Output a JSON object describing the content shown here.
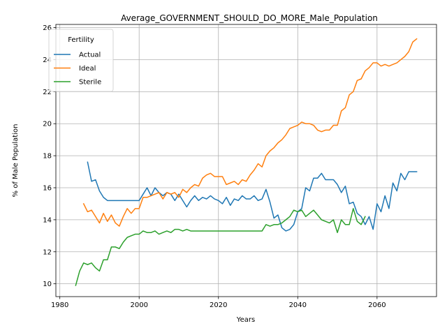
{
  "chart_data": {
    "type": "line",
    "title": "Average_GOVERNMENT_SHOULD_DO_MORE_Male_Population",
    "xlabel": "Years",
    "ylabel": "% of Male Population",
    "xlim": [
      1979,
      2075
    ],
    "ylim": [
      9.2,
      26.2
    ],
    "xticks": [
      1980,
      2000,
      2020,
      2040,
      2060
    ],
    "yticks": [
      10,
      12,
      14,
      16,
      18,
      20,
      22,
      24,
      26
    ],
    "grid": true,
    "legend": {
      "title": "Fertility",
      "placement": "top-left",
      "entries": [
        "Actual",
        "Ideal",
        "Sterile"
      ]
    },
    "series": [
      {
        "name": "Actual",
        "color": "#1f77b4",
        "x": [
          1987,
          1988,
          1989,
          1990,
          1991,
          1992,
          1993,
          1994,
          1995,
          1996,
          1997,
          1998,
          1999,
          2000,
          2001,
          2002,
          2003,
          2004,
          2005,
          2006,
          2007,
          2008,
          2009,
          2010,
          2011,
          2012,
          2013,
          2014,
          2015,
          2016,
          2017,
          2018,
          2019,
          2020,
          2021,
          2022,
          2023,
          2024,
          2025,
          2026,
          2027,
          2028,
          2029,
          2030,
          2031,
          2032,
          2033,
          2034,
          2035,
          2036,
          2037,
          2038,
          2039,
          2040,
          2041,
          2042,
          2043,
          2044,
          2045,
          2046,
          2047,
          2048,
          2049,
          2050,
          2051,
          2052,
          2053,
          2054,
          2055,
          2056,
          2057,
          2058,
          2059,
          2060,
          2061,
          2062,
          2063,
          2064,
          2065,
          2066,
          2067,
          2068,
          2069,
          2070
        ],
        "values": [
          17.6,
          16.4,
          16.5,
          15.8,
          15.4,
          15.2,
          15.2,
          15.2,
          15.2,
          15.2,
          15.2,
          15.2,
          15.2,
          15.2,
          15.6,
          16.0,
          15.5,
          16.0,
          15.7,
          15.5,
          15.7,
          15.6,
          15.2,
          15.6,
          15.2,
          14.8,
          15.2,
          15.5,
          15.2,
          15.4,
          15.3,
          15.5,
          15.3,
          15.2,
          15.0,
          15.4,
          14.9,
          15.3,
          15.2,
          15.5,
          15.3,
          15.3,
          15.5,
          15.2,
          15.3,
          15.9,
          15.1,
          14.1,
          14.3,
          13.5,
          13.3,
          13.4,
          13.7,
          14.5,
          14.7,
          16.0,
          15.8,
          16.6,
          16.6,
          16.9,
          16.5,
          16.5,
          16.5,
          16.2,
          15.7,
          16.1,
          15.0,
          15.1,
          14.4,
          14.2,
          13.7,
          14.2,
          13.4,
          15.0,
          14.5,
          15.5,
          14.7,
          16.3,
          15.8,
          16.9,
          16.5,
          17.0,
          17.0,
          17.0
        ]
      },
      {
        "name": "Ideal",
        "color": "#ff7f0e",
        "x": [
          1986,
          1987,
          1988,
          1989,
          1990,
          1991,
          1992,
          1993,
          1994,
          1995,
          1996,
          1997,
          1998,
          1999,
          2000,
          2001,
          2002,
          2003,
          2004,
          2005,
          2006,
          2007,
          2008,
          2009,
          2010,
          2011,
          2012,
          2013,
          2014,
          2015,
          2016,
          2017,
          2018,
          2019,
          2020,
          2021,
          2022,
          2023,
          2024,
          2025,
          2026,
          2027,
          2028,
          2029,
          2030,
          2031,
          2032,
          2033,
          2034,
          2035,
          2036,
          2037,
          2038,
          2039,
          2040,
          2041,
          2042,
          2043,
          2044,
          2045,
          2046,
          2047,
          2048,
          2049,
          2050,
          2051,
          2052,
          2053,
          2054,
          2055,
          2056,
          2057,
          2058,
          2059,
          2060,
          2061,
          2062,
          2063,
          2064,
          2065,
          2066,
          2067,
          2068,
          2069,
          2070
        ],
        "values": [
          15.0,
          14.5,
          14.6,
          14.2,
          13.8,
          14.4,
          13.9,
          14.3,
          13.8,
          13.6,
          14.2,
          14.7,
          14.4,
          14.7,
          14.7,
          15.4,
          15.4,
          15.5,
          15.6,
          15.7,
          15.3,
          15.7,
          15.6,
          15.7,
          15.4,
          15.9,
          15.7,
          16.0,
          16.2,
          16.1,
          16.6,
          16.8,
          16.9,
          16.7,
          16.7,
          16.7,
          16.2,
          16.3,
          16.4,
          16.2,
          16.5,
          16.4,
          16.8,
          17.1,
          17.5,
          17.3,
          18.0,
          18.3,
          18.5,
          18.8,
          19.0,
          19.3,
          19.7,
          19.8,
          19.9,
          20.1,
          20.0,
          20.0,
          19.9,
          19.6,
          19.5,
          19.6,
          19.6,
          19.9,
          19.9,
          20.8,
          21.0,
          21.8,
          22.0,
          22.7,
          22.8,
          23.3,
          23.5,
          23.8,
          23.8,
          23.6,
          23.7,
          23.6,
          23.7,
          23.8,
          24.0,
          24.2,
          24.5,
          25.1,
          25.3
        ]
      },
      {
        "name": "Sterile",
        "color": "#2ca02c",
        "x": [
          1984,
          1985,
          1986,
          1987,
          1988,
          1989,
          1990,
          1991,
          1992,
          1993,
          1994,
          1995,
          1996,
          1997,
          1998,
          1999,
          2000,
          2001,
          2002,
          2003,
          2004,
          2005,
          2006,
          2007,
          2008,
          2009,
          2010,
          2011,
          2012,
          2013,
          2014,
          2015,
          2016,
          2017,
          2018,
          2019,
          2020,
          2021,
          2022,
          2023,
          2024,
          2025,
          2026,
          2027,
          2028,
          2029,
          2030,
          2031,
          2032,
          2033,
          2034,
          2035,
          2036,
          2037,
          2038,
          2039,
          2040,
          2041,
          2042,
          2043,
          2044,
          2045,
          2046,
          2047,
          2048,
          2049,
          2050,
          2051,
          2052,
          2053,
          2054,
          2055,
          2056,
          2057
        ],
        "values": [
          9.9,
          10.8,
          11.3,
          11.2,
          11.3,
          11.0,
          10.8,
          11.5,
          11.5,
          12.3,
          12.3,
          12.2,
          12.6,
          12.9,
          13.0,
          13.1,
          13.1,
          13.3,
          13.2,
          13.2,
          13.3,
          13.1,
          13.2,
          13.3,
          13.2,
          13.4,
          13.4,
          13.3,
          13.4,
          13.3,
          13.3,
          13.3,
          13.3,
          13.3,
          13.3,
          13.3,
          13.3,
          13.3,
          13.3,
          13.3,
          13.3,
          13.3,
          13.3,
          13.3,
          13.3,
          13.3,
          13.3,
          13.3,
          13.7,
          13.6,
          13.7,
          13.7,
          13.8,
          14.0,
          14.2,
          14.6,
          14.5,
          14.6,
          14.2,
          14.4,
          14.6,
          14.3,
          14.0,
          13.9,
          13.8,
          14.0,
          13.2,
          14.0,
          13.7,
          13.7,
          14.7,
          13.9,
          13.7,
          14.2
        ]
      }
    ]
  }
}
